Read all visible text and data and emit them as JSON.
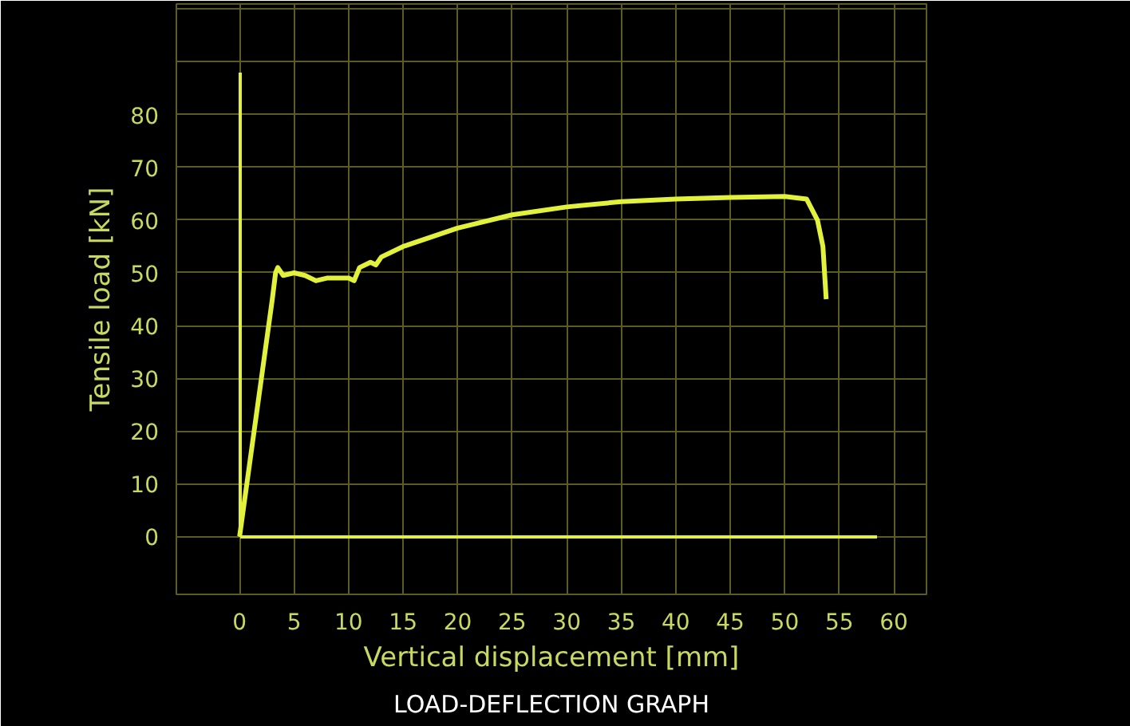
{
  "chart_data": {
    "type": "line",
    "xlabel": "Vertical displacement [mm]",
    "ylabel": "Tensile load [kN]",
    "annotations": [
      "LOAD-DEFLECTION GRAPH"
    ],
    "xlim": [
      -5.8,
      63
    ],
    "ylim": [
      -11,
      101
    ],
    "xticks": [
      0,
      5,
      10,
      15,
      20,
      25,
      30,
      35,
      40,
      45,
      50,
      55,
      60
    ],
    "yticks": [
      0,
      10,
      20,
      30,
      40,
      50,
      60,
      70,
      80,
      {
        "value": 90,
        "label": null
      },
      {
        "value": 100,
        "label": null
      }
    ],
    "grid": true,
    "marker": "none",
    "line_style": "solid",
    "series": [
      {
        "color": "#e2f23c",
        "x": [
          0,
          1,
          2,
          3,
          3.3,
          3.5,
          4,
          5,
          6,
          7,
          8,
          9,
          10,
          10.5,
          11,
          12,
          12.5,
          13,
          15,
          20,
          25,
          30,
          35,
          40,
          45,
          50,
          52,
          53,
          53.5,
          53.8
        ],
        "values": [
          0,
          15,
          30,
          45,
          50,
          51,
          49.5,
          50,
          49.5,
          48.5,
          49,
          49,
          49,
          48.5,
          51,
          52,
          51.5,
          53,
          55,
          58.5,
          61,
          62.5,
          63.5,
          64,
          64.3,
          64.5,
          64,
          60,
          55,
          45
        ]
      }
    ]
  }
}
